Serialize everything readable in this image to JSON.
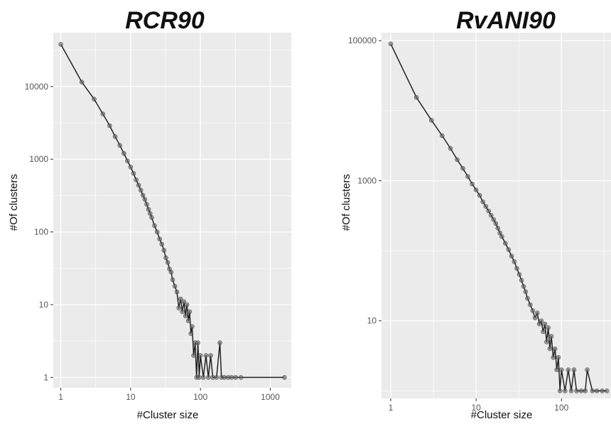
{
  "chart_data": [
    {
      "type": "line",
      "title": "RCR90",
      "xlabel": "#Cluster size",
      "ylabel": "#Of clusters",
      "x_scale": "log10",
      "y_scale": "log10",
      "xlim": [
        0.78,
        2000
      ],
      "ylim": [
        0.72,
        55000
      ],
      "x_ticks": [
        1,
        10,
        100,
        1000
      ],
      "x_tick_labels": [
        "1",
        "10",
        "100",
        "1000"
      ],
      "y_ticks": [
        1,
        10,
        100,
        1000,
        10000
      ],
      "y_tick_labels": [
        "1",
        "10",
        "100",
        "1000",
        "10000"
      ],
      "grid": true,
      "series": [
        {
          "points_marker": "circle",
          "color": "#222222",
          "x": [
            1,
            2,
            3,
            4,
            5,
            6,
            7,
            8,
            9,
            10,
            11,
            12,
            13,
            14,
            15,
            16,
            17,
            18,
            19,
            20,
            22,
            24,
            26,
            28,
            30,
            32,
            34,
            36,
            38,
            40,
            43,
            46,
            49,
            52,
            55,
            58,
            61,
            64,
            67,
            70,
            73,
            76,
            80,
            84,
            88,
            92,
            96,
            100,
            110,
            120,
            130,
            140,
            150,
            170,
            190,
            200,
            220,
            250,
            280,
            320,
            380,
            1600
          ],
          "y": [
            38000,
            11500,
            6700,
            4200,
            2900,
            2050,
            1550,
            1200,
            950,
            780,
            640,
            520,
            440,
            375,
            320,
            280,
            240,
            205,
            180,
            158,
            122,
            100,
            80,
            68,
            56,
            44,
            38,
            31,
            28,
            22,
            18,
            15,
            9,
            12,
            8,
            11,
            7,
            10,
            6,
            8,
            4,
            5,
            2,
            3,
            1,
            3,
            1,
            2,
            1,
            2,
            1,
            2,
            1,
            1,
            3,
            1,
            1,
            1,
            1,
            1,
            1,
            1
          ]
        }
      ]
    },
    {
      "type": "line",
      "title": "RvANI90",
      "xlabel": "#Cluster size",
      "ylabel": "#Of clusters",
      "x_scale": "log10",
      "y_scale": "log10",
      "xlim": [
        0.78,
        380
      ],
      "ylim": [
        0.78,
        130000
      ],
      "x_ticks": [
        1,
        10,
        100
      ],
      "x_tick_labels": [
        "1",
        "10",
        "100"
      ],
      "y_ticks": [
        10,
        1000,
        100000
      ],
      "y_tick_labels": [
        "10",
        "1000",
        "100000"
      ],
      "grid": true,
      "series": [
        {
          "points_marker": "circle",
          "color": "#222222",
          "x": [
            1,
            2,
            3,
            4,
            5,
            6,
            7,
            8,
            9,
            10,
            11,
            12,
            13,
            14,
            15,
            16,
            17,
            18,
            19,
            20,
            22,
            24,
            26,
            28,
            30,
            32,
            34,
            36,
            38,
            40,
            43,
            46,
            49,
            52,
            55,
            58,
            61,
            64,
            67,
            70,
            73,
            76,
            80,
            84,
            88,
            92,
            96,
            100,
            110,
            120,
            130,
            140,
            150,
            170,
            190,
            200,
            230,
            260,
            300,
            340
          ],
          "y": [
            90000,
            15500,
            7300,
            4400,
            2900,
            2000,
            1500,
            1150,
            900,
            740,
            620,
            500,
            430,
            370,
            320,
            280,
            245,
            210,
            180,
            160,
            128,
            104,
            84,
            70,
            56,
            46,
            38,
            31,
            26,
            21,
            17,
            14,
            11,
            13,
            9,
            10,
            7,
            9,
            5,
            8,
            4,
            6,
            3,
            4,
            2,
            3,
            1,
            2,
            1,
            2,
            1,
            2,
            1,
            1,
            1,
            2,
            1,
            1,
            1,
            1
          ]
        }
      ]
    }
  ]
}
